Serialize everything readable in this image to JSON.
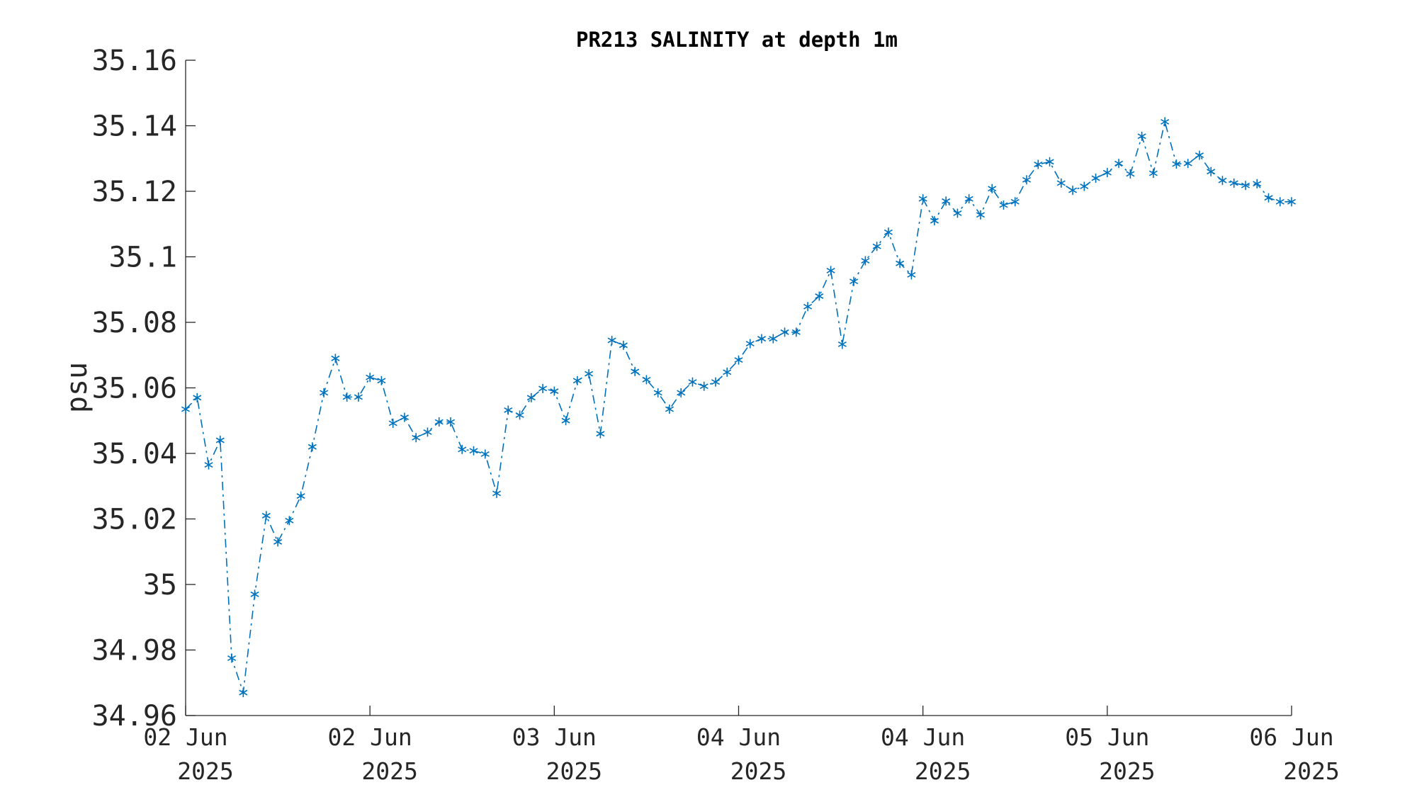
{
  "chart_data": {
    "type": "line",
    "title": "PR213 SALINITY at depth 1m",
    "xlabel": "",
    "ylabel": "psu",
    "ylim": [
      34.96,
      35.16
    ],
    "yticks": [
      34.96,
      34.98,
      35.0,
      35.02,
      35.04,
      35.06,
      35.08,
      35.1,
      35.12,
      35.14,
      35.16
    ],
    "ytick_labels": [
      "34.96",
      "34.98",
      "35",
      "35.02",
      "35.04",
      "35.06",
      "35.08",
      "35.1",
      "35.12",
      "35.14",
      "35.16"
    ],
    "xlim": [
      "2025-06-01 23:45",
      "2025-06-05 23:45"
    ],
    "xticks": [
      "2025-06-01 23:45",
      "2025-06-02 15:45",
      "2025-06-03 07:45",
      "2025-06-03 23:45",
      "2025-06-04 15:45",
      "2025-06-05 07:45",
      "2025-06-05 23:45"
    ],
    "xtick_labels": [
      [
        "02 Jun",
        "2025"
      ],
      [
        "02 Jun",
        "2025"
      ],
      [
        "03 Jun",
        "2025"
      ],
      [
        "04 Jun",
        "2025"
      ],
      [
        "04 Jun",
        "2025"
      ],
      [
        "05 Jun",
        "2025"
      ],
      [
        "06 Jun",
        "2025"
      ]
    ],
    "grid": false,
    "legend": "none",
    "series": [
      {
        "color": "#0072BD",
        "line_style": "dash-dot",
        "marker": "asterisk",
        "x": [
          "2025-06-01 23:45",
          "2025-06-02 00:45",
          "2025-06-02 01:45",
          "2025-06-02 02:45",
          "2025-06-02 03:45",
          "2025-06-02 04:45",
          "2025-06-02 05:45",
          "2025-06-02 06:45",
          "2025-06-02 07:45",
          "2025-06-02 08:45",
          "2025-06-02 09:45",
          "2025-06-02 10:45",
          "2025-06-02 11:45",
          "2025-06-02 12:45",
          "2025-06-02 13:45",
          "2025-06-02 14:45",
          "2025-06-02 15:45",
          "2025-06-02 16:45",
          "2025-06-02 17:45",
          "2025-06-02 18:45",
          "2025-06-02 19:45",
          "2025-06-02 20:45",
          "2025-06-02 21:45",
          "2025-06-02 22:45",
          "2025-06-02 23:45",
          "2025-06-03 00:45",
          "2025-06-03 01:45",
          "2025-06-03 02:45",
          "2025-06-03 03:45",
          "2025-06-03 04:45",
          "2025-06-03 05:45",
          "2025-06-03 06:45",
          "2025-06-03 07:45",
          "2025-06-03 08:45",
          "2025-06-03 09:45",
          "2025-06-03 10:45",
          "2025-06-03 11:45",
          "2025-06-03 12:45",
          "2025-06-03 13:45",
          "2025-06-03 14:45",
          "2025-06-03 15:45",
          "2025-06-03 16:45",
          "2025-06-03 17:45",
          "2025-06-03 18:45",
          "2025-06-03 19:45",
          "2025-06-03 20:45",
          "2025-06-03 21:45",
          "2025-06-03 22:45",
          "2025-06-03 23:45",
          "2025-06-04 00:45",
          "2025-06-04 01:45",
          "2025-06-04 02:45",
          "2025-06-04 03:45",
          "2025-06-04 04:45",
          "2025-06-04 05:45",
          "2025-06-04 06:45",
          "2025-06-04 07:45",
          "2025-06-04 08:45",
          "2025-06-04 09:45",
          "2025-06-04 10:45",
          "2025-06-04 11:45",
          "2025-06-04 12:45",
          "2025-06-04 13:45",
          "2025-06-04 14:45",
          "2025-06-04 15:45",
          "2025-06-04 16:45",
          "2025-06-04 17:45",
          "2025-06-04 18:45",
          "2025-06-04 19:45",
          "2025-06-04 20:45",
          "2025-06-04 21:45",
          "2025-06-04 22:45",
          "2025-06-04 23:45",
          "2025-06-05 00:45",
          "2025-06-05 01:45",
          "2025-06-05 02:45",
          "2025-06-05 03:45",
          "2025-06-05 04:45",
          "2025-06-05 05:45",
          "2025-06-05 06:45",
          "2025-06-05 07:45",
          "2025-06-05 08:45",
          "2025-06-05 09:45",
          "2025-06-05 10:45",
          "2025-06-05 11:45",
          "2025-06-05 12:45",
          "2025-06-05 13:45",
          "2025-06-05 14:45",
          "2025-06-05 15:45",
          "2025-06-05 16:45",
          "2025-06-05 17:45",
          "2025-06-05 18:45",
          "2025-06-05 19:45",
          "2025-06-05 20:45",
          "2025-06-05 21:45",
          "2025-06-05 22:45",
          "2025-06-05 23:45"
        ],
        "values": [
          35.0535,
          35.057,
          35.0365,
          35.044,
          34.9775,
          34.967,
          34.997,
          35.021,
          35.013,
          35.0195,
          35.027,
          35.042,
          35.0585,
          35.069,
          35.0572,
          35.0572,
          35.0632,
          35.0622,
          35.0492,
          35.051,
          35.0448,
          35.0465,
          35.0496,
          35.0496,
          35.0412,
          35.0408,
          35.0398,
          35.0278,
          35.0532,
          35.0517,
          35.057,
          35.0598,
          35.059,
          35.05,
          35.0622,
          35.0643,
          35.046,
          35.0745,
          35.073,
          35.065,
          35.0625,
          35.0585,
          35.0535,
          35.0585,
          35.0618,
          35.0605,
          35.0618,
          35.0648,
          35.0685,
          35.0735,
          35.075,
          35.075,
          35.077,
          35.077,
          35.0848,
          35.088,
          35.0958,
          35.0733,
          35.0925,
          35.0988,
          35.1032,
          35.1075,
          35.098,
          35.0945,
          35.1177,
          35.111,
          35.117,
          35.1133,
          35.1177,
          35.1128,
          35.1208,
          35.1158,
          35.1168,
          35.1235,
          35.1282,
          35.129,
          35.1225,
          35.1203,
          35.1215,
          35.124,
          35.1257,
          35.1285,
          35.1253,
          35.1368,
          35.1255,
          35.1412,
          35.1283,
          35.1285,
          35.131,
          35.126,
          35.1233,
          35.1225,
          35.1218,
          35.1223,
          35.118,
          35.1168,
          35.1168
        ]
      }
    ]
  }
}
